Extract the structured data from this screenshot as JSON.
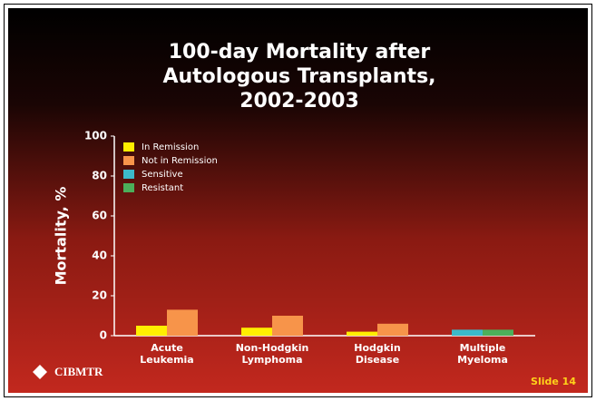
{
  "chart_data": {
    "type": "bar",
    "title": [
      "100-day Mortality after",
      "Autologous Transplants,",
      "2002-2003"
    ],
    "y_label": "Mortality, %",
    "categories": [
      [
        "Acute",
        "Leukemia"
      ],
      [
        "Non-Hodgkin",
        "Lymphoma"
      ],
      [
        "Hodgkin",
        "Disease"
      ],
      [
        "Multiple",
        "Myeloma"
      ]
    ],
    "series": [
      {
        "name": "In Remission",
        "color": "#ffee00",
        "values": [
          5,
          4,
          2,
          null
        ]
      },
      {
        "name": "Not in Remission",
        "color": "#f7944a",
        "values": [
          13,
          10,
          6,
          null
        ]
      },
      {
        "name": "Sensitive",
        "color": "#3cb9c9",
        "values": [
          null,
          null,
          null,
          3
        ]
      },
      {
        "name": "Resistant",
        "color": "#4caf5a",
        "values": [
          null,
          null,
          null,
          3
        ]
      }
    ],
    "ylim": [
      0,
      100
    ],
    "yticks": [
      0,
      20,
      40,
      60,
      80,
      100
    ],
    "legend": "top-left",
    "logo": "CIBMTR",
    "slide_label": "Slide 14"
  }
}
